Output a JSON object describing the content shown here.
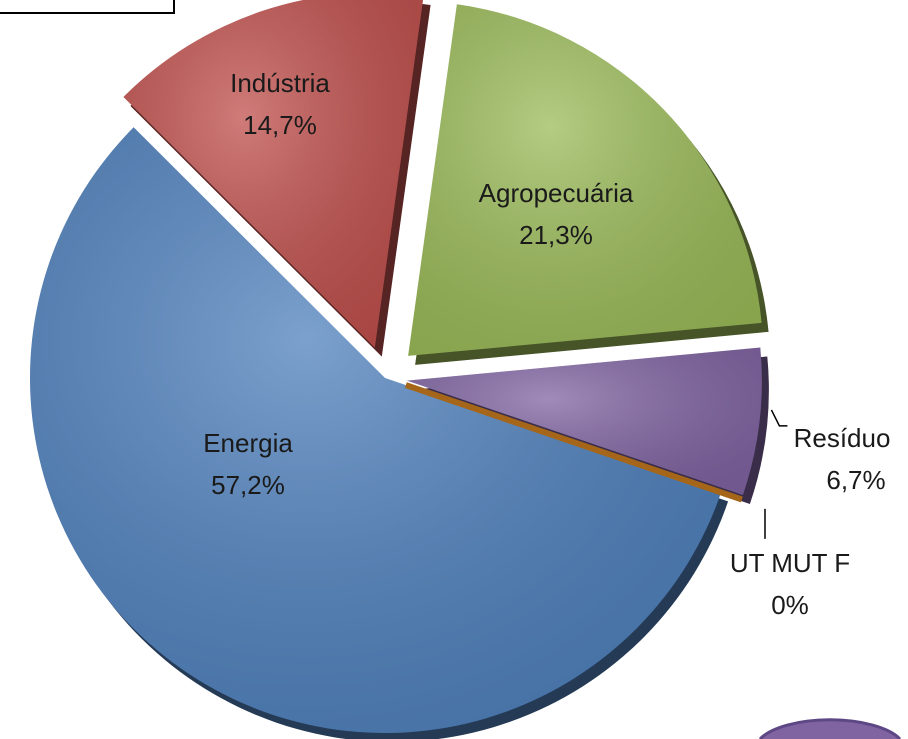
{
  "chart_data": {
    "type": "pie",
    "categories": [
      "Energia",
      "Indústria",
      "Agropecuária",
      "Resíduo",
      "UT MUT F"
    ],
    "values": [
      57.2,
      14.7,
      21.3,
      6.7,
      0
    ],
    "value_labels": [
      "57,2%",
      "14,7%",
      "21,3%",
      "6,7%",
      "0%"
    ],
    "colors": [
      "#4f81bd",
      "#c0504d",
      "#9bbb59",
      "#8064a2",
      "#d0801f"
    ]
  }
}
